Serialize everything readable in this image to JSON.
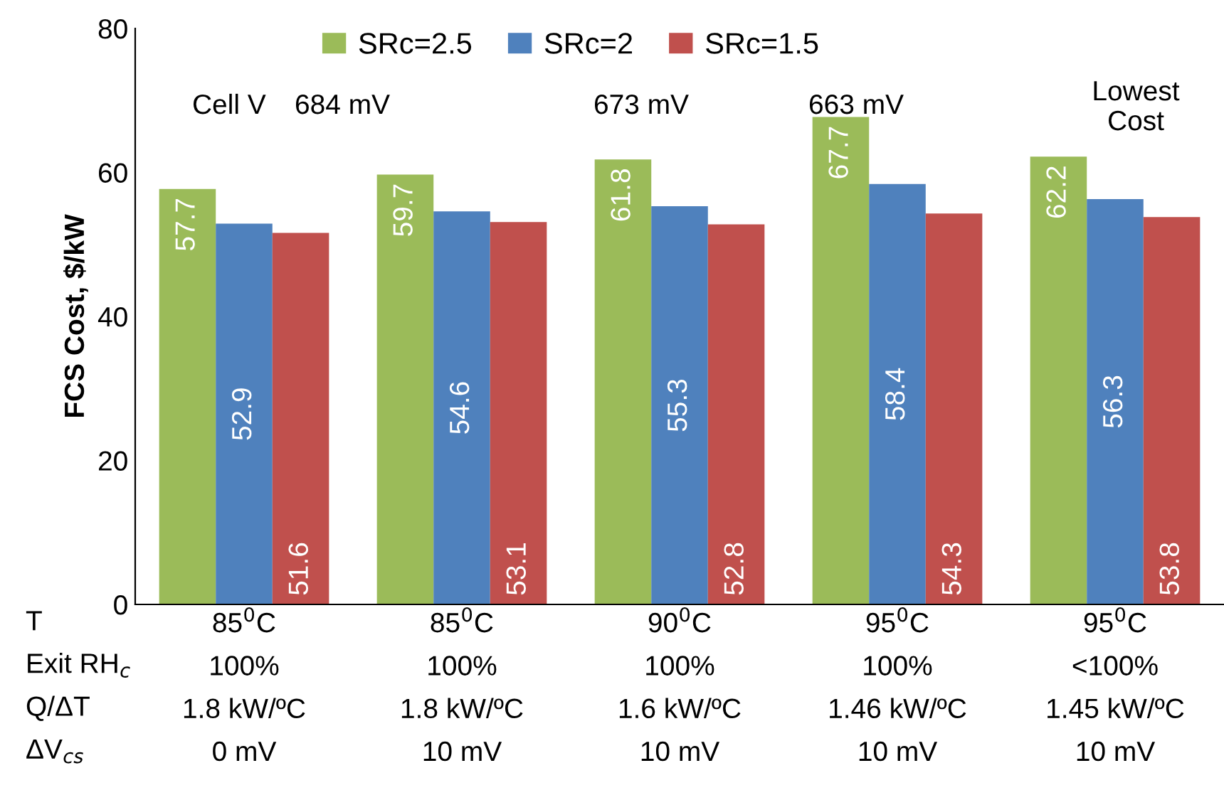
{
  "chart_data": {
    "type": "bar",
    "ylabel": "FCS Cost, $/kW",
    "categories": [
      "85$^{0}$C\n100%\n1.8 kW/ºC\n0 mV",
      "85$^{0}$C\n100%\n1.8 kW/ºC\n10 mV",
      "90$^{0}$C\n100%\n1.6 kW/ºC\n10 mV",
      "95$^{0}$C\n100%\n1.46 kW/ºC\n10 mV",
      "95$^{0}$C\n<100%\n1.45 kW/ºC\n10 mV"
    ],
    "series": [
      {
        "name": "SRc=2.5",
        "color": "#9bbb59",
        "values": [
          57.7,
          59.7,
          61.8,
          67.7,
          62.2
        ]
      },
      {
        "name": "SRc=2",
        "color": "#4f81bd",
        "values": [
          52.9,
          54.6,
          55.3,
          58.4,
          56.3
        ]
      },
      {
        "name": "SRc=1.5",
        "color": "#c0504d",
        "values": [
          51.6,
          53.1,
          52.8,
          54.3,
          53.8
        ]
      }
    ],
    "ylim": [
      0,
      80
    ],
    "yticks": [
      0,
      20,
      40,
      60,
      80
    ],
    "grid": false,
    "legend": "top",
    "data_labels": true,
    "annotations": [
      "T\nExit RH$_{c}$\nQ/ΔT\nΔV$_{cs}$",
      "Cell V",
      "684 mV",
      "673 mV",
      "663 mV",
      "Lowest\nCost"
    ]
  }
}
